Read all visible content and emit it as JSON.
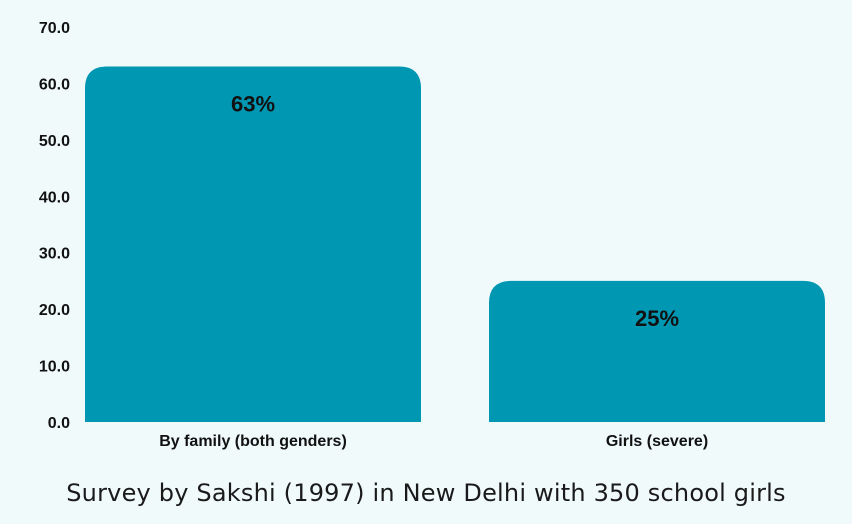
{
  "caption": "Survey by Sakshi (1997) in New Delhi with 350 school girls",
  "colors": {
    "bar": "#0097b2",
    "background": "#f0fafb",
    "text": "#111111"
  },
  "chart_data": {
    "type": "bar",
    "categories": [
      "By family (both genders)",
      "Girls (severe)"
    ],
    "values": [
      63,
      25
    ],
    "data_labels": [
      "63%",
      "25%"
    ],
    "title": "",
    "xlabel": "",
    "ylabel": "",
    "ylim": [
      0,
      70
    ],
    "yticks": [
      "0.0",
      "10.0",
      "20.0",
      "30.0",
      "40.0",
      "50.0",
      "60.0",
      "70.0"
    ],
    "grid": false,
    "legend": "none"
  }
}
